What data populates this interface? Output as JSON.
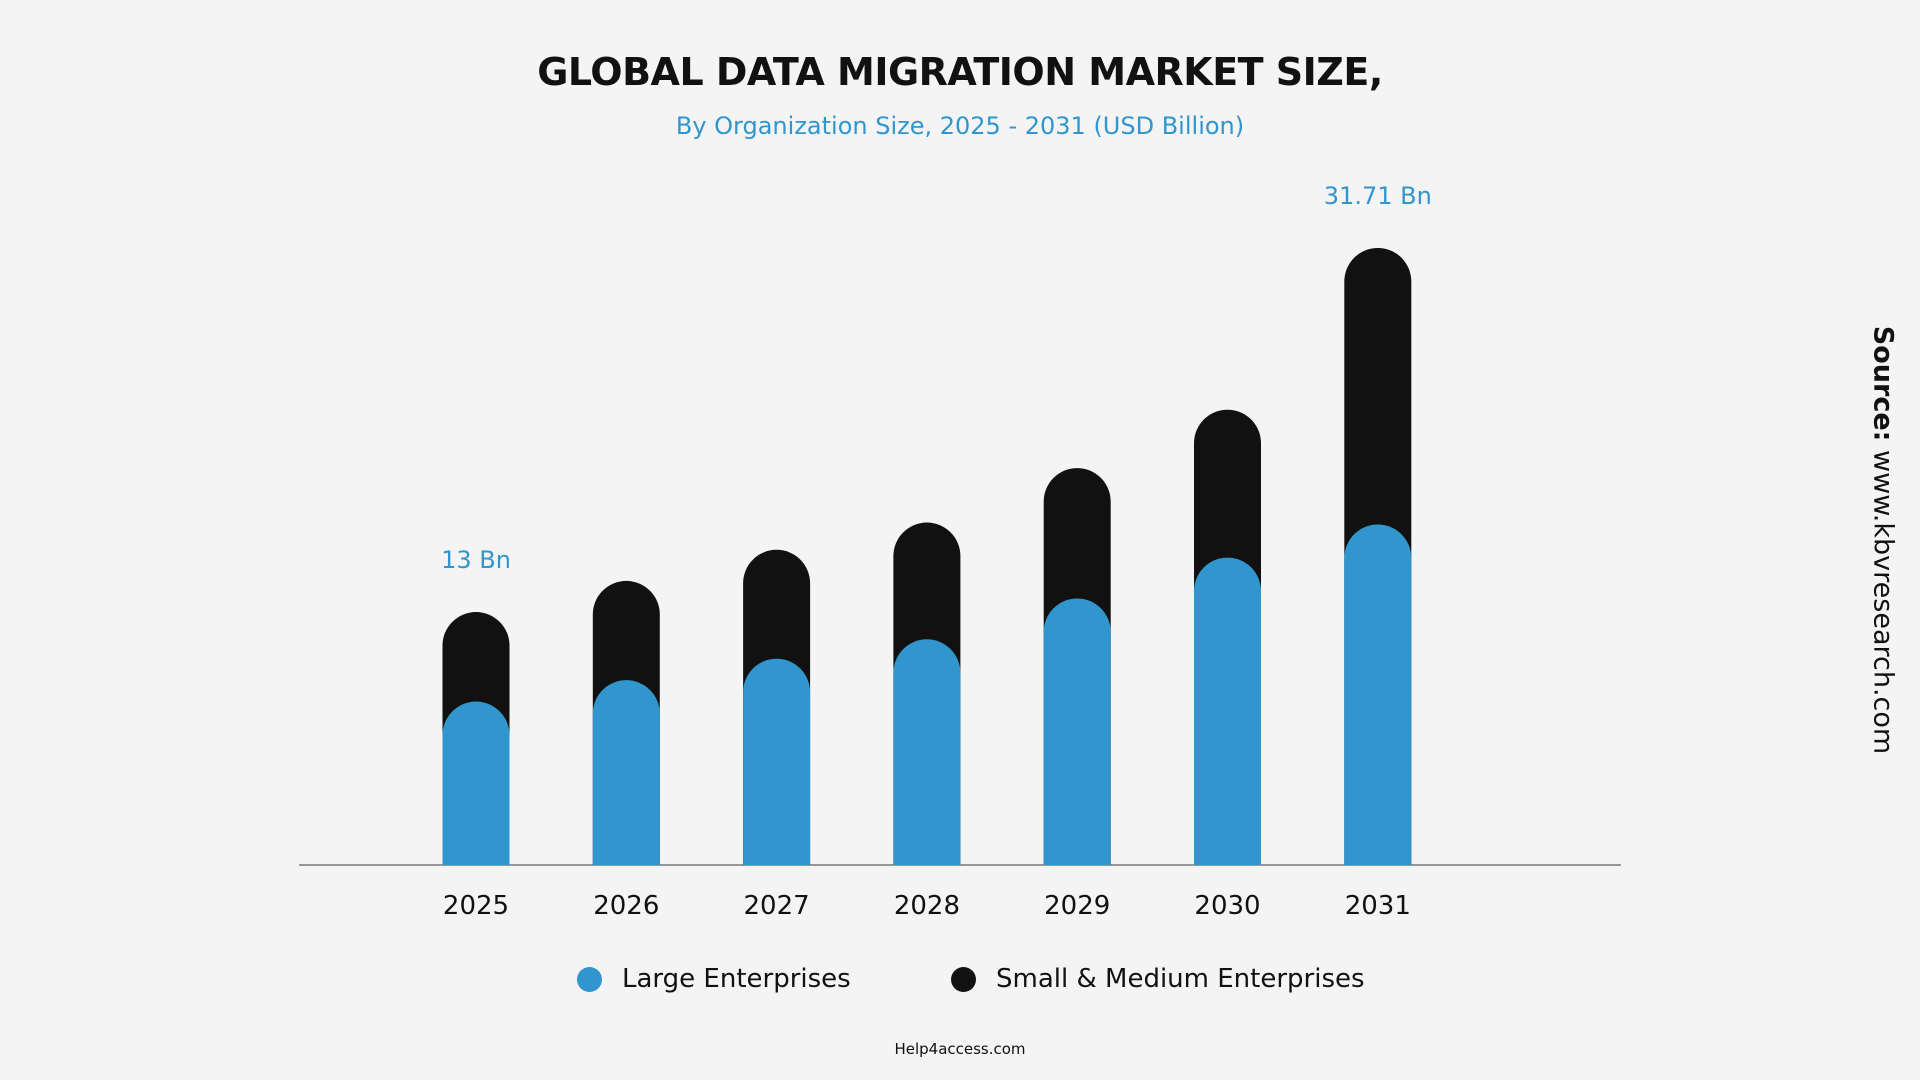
{
  "title": "GLOBAL DATA MIGRATION MARKET SIZE,",
  "subtitle": "By Organization Size, 2025 - 2031 (USD Billion)",
  "source": {
    "label": "Source:",
    "text": "www.kbvresearch.com"
  },
  "footer": "Help4access.com",
  "colors": {
    "large_enterprises": "#3096cd",
    "sme": "#111111",
    "annotation": "#3096cd",
    "axis": "#777777"
  },
  "chart_data": {
    "type": "bar",
    "stacked": true,
    "title": "GLOBAL DATA MIGRATION MARKET SIZE,",
    "subtitle": "By Organization Size, 2025 - 2031 (USD Billion)",
    "categories": [
      "2025",
      "2026",
      "2027",
      "2028",
      "2029",
      "2030",
      "2031"
    ],
    "series": [
      {
        "name": "Large Enterprises",
        "values": [
          8.4,
          9.5,
          10.6,
          11.6,
          13.7,
          15.8,
          17.5
        ]
      },
      {
        "name": "Small & Medium Enterprises",
        "values": [
          4.6,
          5.1,
          5.6,
          6.0,
          6.7,
          7.6,
          14.21
        ]
      }
    ],
    "totals": [
      13.0,
      14.6,
      16.2,
      17.6,
      20.4,
      23.4,
      31.71
    ],
    "annotations": [
      {
        "category": "2025",
        "text": "13 Bn"
      },
      {
        "category": "2031",
        "text": "31.71 Bn"
      }
    ],
    "ylim": [
      0,
      31.71
    ],
    "grid": false,
    "legend_position": "bottom"
  }
}
